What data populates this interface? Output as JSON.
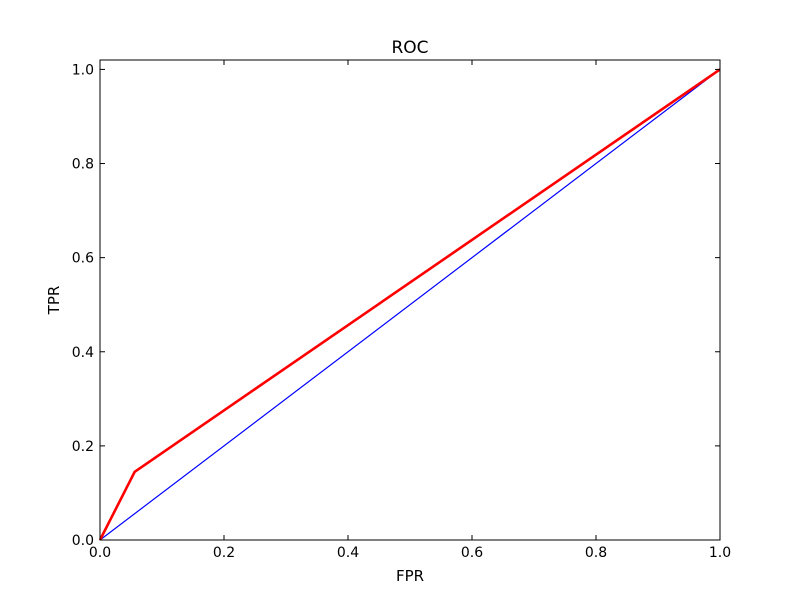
{
  "chart_data": {
    "type": "line",
    "title": "ROC",
    "xlabel": "FPR",
    "ylabel": "TPR",
    "xlim": [
      0,
      1
    ],
    "ylim": [
      0,
      1.02
    ],
    "xticks": [
      0.0,
      0.2,
      0.4,
      0.6,
      0.8,
      1.0
    ],
    "yticks": [
      0.0,
      0.2,
      0.4,
      0.6,
      0.8,
      1.0
    ],
    "xtick_labels": [
      "0.0",
      "0.2",
      "0.4",
      "0.6",
      "0.8",
      "1.0"
    ],
    "ytick_labels": [
      "0.0",
      "0.2",
      "0.4",
      "0.6",
      "0.8",
      "1.0"
    ],
    "grid": false,
    "series": [
      {
        "x": [
          0.0,
          1.0
        ],
        "y": [
          0.0,
          1.0
        ],
        "color": "#0000ff"
      },
      {
        "x": [
          0.0,
          0.056,
          1.0
        ],
        "y": [
          0.0,
          0.145,
          1.0
        ],
        "color": "#ff0000"
      }
    ]
  }
}
